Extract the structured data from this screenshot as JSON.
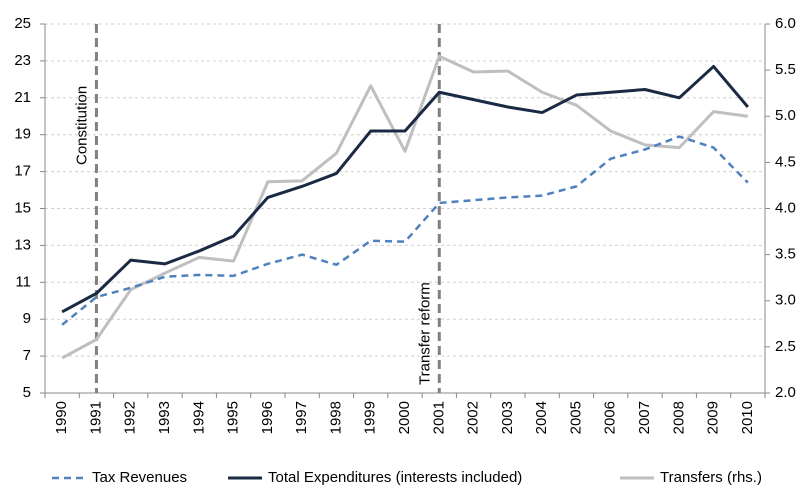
{
  "chart_data": {
    "type": "line",
    "categories": [
      "1990",
      "1991",
      "1992",
      "1993",
      "1994",
      "1995",
      "1996",
      "1997",
      "1998",
      "1999",
      "2000",
      "2001",
      "2002",
      "2003",
      "2004",
      "2005",
      "2006",
      "2007",
      "2008",
      "2009",
      "2010"
    ],
    "series": [
      {
        "name": "Tax Revenues",
        "color": "#4f81bd",
        "style": "dashed",
        "values": [
          8.7,
          10.2,
          10.7,
          11.3,
          11.4,
          11.35,
          12.0,
          12.5,
          11.95,
          13.25,
          13.2,
          15.3,
          15.45,
          15.6,
          15.7,
          16.2,
          17.7,
          18.2,
          18.9,
          18.3,
          16.4
        ]
      },
      {
        "name": "Total Expenditures (interests included)",
        "color": "#1b2a44",
        "style": "solid",
        "values": [
          9.4,
          10.4,
          12.2,
          12.0,
          12.7,
          13.5,
          15.6,
          16.2,
          16.9,
          19.2,
          19.2,
          21.3,
          20.9,
          20.5,
          20.2,
          21.15,
          21.3,
          21.45,
          21.0,
          22.7,
          20.5
        ]
      },
      {
        "name": "Transfers (rhs.)",
        "color": "#bfbfbf",
        "style": "solid",
        "axis": "y2",
        "values": [
          2.38,
          2.58,
          3.12,
          3.3,
          3.47,
          3.43,
          4.29,
          4.3,
          4.6,
          5.33,
          4.62,
          5.65,
          5.48,
          5.49,
          5.26,
          5.12,
          4.84,
          4.69,
          4.66,
          5.05,
          5.0
        ]
      }
    ],
    "ylim": [
      5,
      25
    ],
    "yticks": [
      5,
      7,
      9,
      11,
      13,
      15,
      17,
      19,
      21,
      23,
      25
    ],
    "y2lim": [
      2,
      6
    ],
    "y2ticks": [
      {
        "value": 2,
        "label": "2.0"
      },
      {
        "value": 2.5,
        "label": "2.5"
      },
      {
        "value": 3,
        "label": "3.0"
      },
      {
        "value": 3.5,
        "label": "3.5"
      },
      {
        "value": 4,
        "label": "4.0"
      },
      {
        "value": 4.5,
        "label": "4.5"
      },
      {
        "value": 5,
        "label": "5.0"
      },
      {
        "value": 5.5,
        "label": "5.5"
      },
      {
        "value": 6,
        "label": "6.0"
      }
    ],
    "grid": true,
    "legend": "bottom",
    "annotations": [
      {
        "text": "Constitution",
        "x": "1991"
      },
      {
        "text": "Transfer reform",
        "x": "2001"
      }
    ]
  }
}
